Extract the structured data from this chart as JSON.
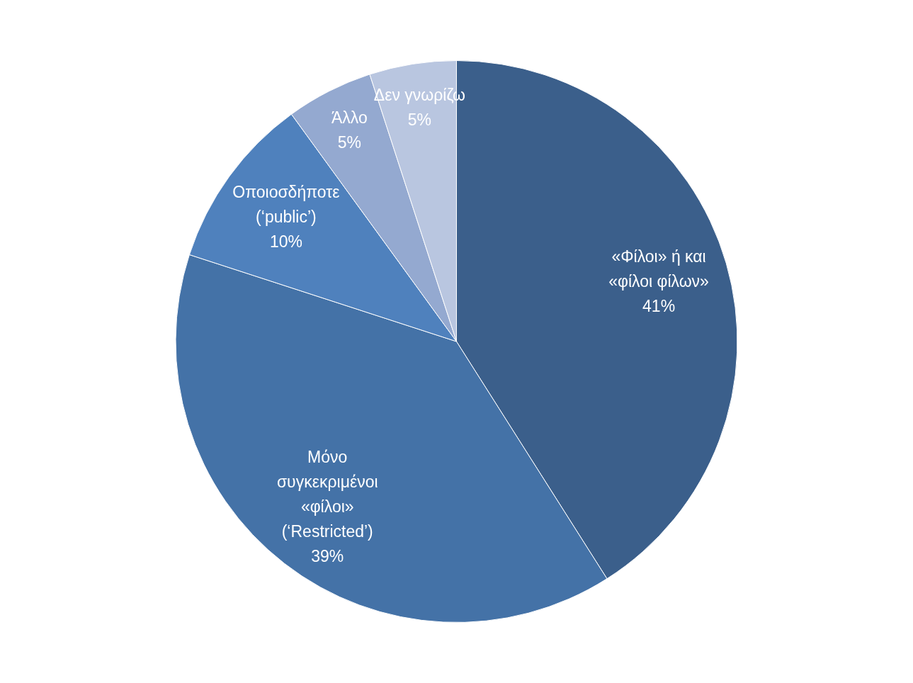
{
  "chart_data": {
    "type": "pie",
    "categories": [
      "«Φίλοι» ή και «φίλοι φίλων»",
      "Μόνο συγκεκριμένοι «φίλοι» (‘Restricted’)",
      "Οποιοσδήποτε (‘public’)",
      "Άλλο",
      "Δεν γνωρίζω"
    ],
    "values": [
      41,
      39,
      10,
      5,
      5
    ],
    "value_labels": [
      "41%",
      "39%",
      "10%",
      "5%",
      "5%"
    ],
    "colors": [
      "#3b5f8b",
      "#4472a7",
      "#4f81bd",
      "#94a9d0",
      "#b9c6e0"
    ],
    "legend": false
  }
}
